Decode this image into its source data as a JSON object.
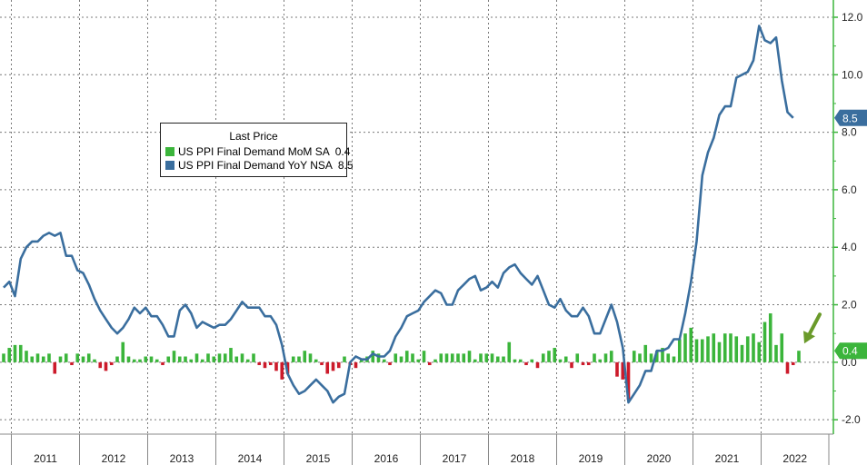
{
  "chart_data": {
    "type": "bar+line",
    "title": "",
    "legend": {
      "title": "Last Price",
      "entries": [
        {
          "name": "US PPI Final Demand MoM SA",
          "value": "0.4",
          "color": "#3bb53b"
        },
        {
          "name": "US PPI Final Demand YoY NSA",
          "value": "8.5",
          "color": "#3a6e9e"
        }
      ]
    },
    "colors": {
      "mom_positive": "#3bb53b",
      "mom_negative": "#cc1a2a",
      "yoy_line": "#3a6e9e",
      "axis": "#3bb53b",
      "grid": "#777777"
    },
    "ylim": [
      -2.5,
      12.6
    ],
    "y_ticks": [
      "12.0",
      "10.0",
      "8.0",
      "6.0",
      "4.0",
      "2.0",
      "0.0",
      "-2.0"
    ],
    "y_tick_values": [
      12,
      10,
      8,
      6,
      4,
      2,
      0,
      -2
    ],
    "x_years": [
      "2011",
      "2012",
      "2013",
      "2014",
      "2015",
      "2016",
      "2017",
      "2018",
      "2019",
      "2020",
      "2021",
      "2022"
    ],
    "x_start": "2010-11",
    "last_value_labels": [
      {
        "text": "8.5",
        "value": 8.5,
        "bg": "#3a6e9e"
      },
      {
        "text": "0.4",
        "value": 0.4,
        "bg": "#3bb53b"
      }
    ],
    "yoy_series_name": "US PPI Final Demand YoY NSA",
    "yoy": [
      2.6,
      2.8,
      2.3,
      3.6,
      4.0,
      4.2,
      4.2,
      4.4,
      4.5,
      4.4,
      4.5,
      3.7,
      3.7,
      3.2,
      3.1,
      2.7,
      2.2,
      1.8,
      1.5,
      1.2,
      1.0,
      1.2,
      1.5,
      1.9,
      1.7,
      1.9,
      1.6,
      1.6,
      1.3,
      0.9,
      0.9,
      1.8,
      2.0,
      1.7,
      1.2,
      1.4,
      1.3,
      1.2,
      1.3,
      1.3,
      1.5,
      1.8,
      2.1,
      1.9,
      1.9,
      1.9,
      1.6,
      1.6,
      1.3,
      0.6,
      -0.4,
      -0.8,
      -1.1,
      -1.0,
      -0.8,
      -0.6,
      -0.8,
      -1.0,
      -1.4,
      -1.2,
      -1.1,
      0.0,
      0.2,
      0.1,
      0.1,
      0.3,
      0.2,
      0.2,
      0.4,
      0.9,
      1.2,
      1.6,
      1.7,
      1.8,
      2.1,
      2.3,
      2.5,
      2.4,
      2.0,
      2.0,
      2.5,
      2.7,
      2.9,
      3.0,
      2.5,
      2.6,
      2.8,
      2.6,
      3.1,
      3.3,
      3.4,
      3.1,
      2.9,
      2.7,
      3.0,
      2.5,
      2.0,
      1.9,
      2.2,
      1.8,
      1.6,
      1.6,
      1.9,
      1.6,
      1.0,
      1.0,
      1.5,
      2.0,
      1.4,
      0.5,
      -1.4,
      -1.1,
      -0.8,
      -0.3,
      -0.3,
      0.4,
      0.4,
      0.5,
      0.8,
      0.8,
      1.7,
      2.8,
      4.2,
      6.5,
      7.3,
      7.8,
      8.6,
      8.9,
      8.9,
      9.9,
      10.0,
      10.1,
      10.5,
      11.7,
      11.2,
      11.1,
      11.3,
      9.8,
      8.7,
      8.5
    ],
    "mom_series_name": "US PPI Final Demand MoM SA",
    "mom": [
      0.3,
      0.5,
      0.6,
      0.6,
      0.4,
      0.2,
      0.3,
      0.2,
      0.3,
      -0.4,
      0.2,
      0.3,
      -0.1,
      0.3,
      0.2,
      0.3,
      0.1,
      -0.2,
      -0.3,
      -0.1,
      0.2,
      0.7,
      0.2,
      0.1,
      0.1,
      0.2,
      0.2,
      0.1,
      -0.1,
      0.2,
      0.4,
      0.2,
      0.2,
      0.1,
      0.3,
      0.1,
      0.3,
      0.2,
      0.3,
      0.3,
      0.5,
      0.2,
      0.3,
      0.1,
      0.3,
      -0.1,
      -0.2,
      -0.1,
      -0.3,
      -0.6,
      -0.4,
      0.2,
      0.2,
      0.4,
      0.3,
      0.1,
      -0.1,
      -0.4,
      -0.3,
      -0.2,
      0.2,
      -0.1,
      -0.2,
      0.1,
      0.2,
      0.4,
      0.3,
      0.1,
      -0.1,
      0.3,
      0.2,
      0.4,
      0.3,
      0.1,
      0.4,
      -0.1,
      0.1,
      0.3,
      0.3,
      0.3,
      0.3,
      0.3,
      0.4,
      0.1,
      0.3,
      0.3,
      0.3,
      0.2,
      0.2,
      0.7,
      0.1,
      0.1,
      -0.1,
      0.1,
      -0.2,
      0.3,
      0.4,
      0.5,
      0.1,
      0.2,
      -0.2,
      0.3,
      -0.1,
      -0.1,
      0.3,
      0.1,
      0.3,
      0.4,
      -0.5,
      -0.6,
      -1.3,
      0.4,
      0.3,
      0.6,
      0.3,
      0.4,
      0.5,
      0.3,
      0.2,
      0.8,
      1.0,
      1.2,
      0.8,
      0.8,
      0.9,
      1.0,
      0.7,
      1.0,
      1.0,
      0.9,
      0.6,
      0.9,
      1.0,
      0.7,
      1.4,
      1.7,
      0.6,
      1.0,
      -0.4,
      -0.1,
      0.4
    ]
  }
}
